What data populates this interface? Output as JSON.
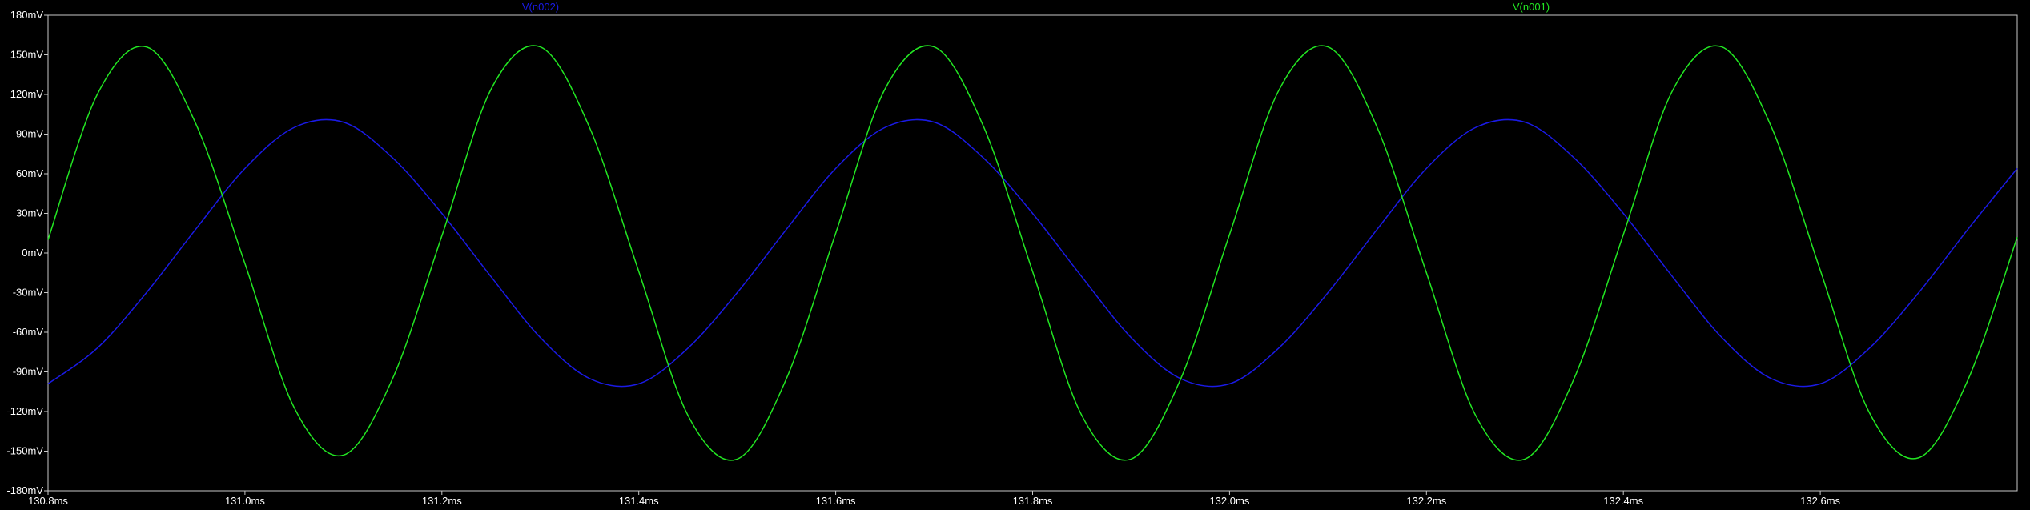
{
  "chart_data": {
    "type": "line",
    "title": "",
    "xlabel": "",
    "ylabel": "",
    "xlim": [
      130.8,
      132.8
    ],
    "ylim": [
      -180,
      180
    ],
    "x_unit": "ms",
    "y_unit": "mV",
    "x_ticks": [
      130.8,
      131.0,
      131.2,
      131.4,
      131.6,
      131.8,
      132.0,
      132.2,
      132.4,
      132.6
    ],
    "x_tick_labels": [
      "130.8ms",
      "131.0ms",
      "131.2ms",
      "131.4ms",
      "131.6ms",
      "131.8ms",
      "132.0ms",
      "132.2ms",
      "132.4ms",
      "132.6ms"
    ],
    "y_ticks": [
      180,
      150,
      120,
      90,
      60,
      30,
      0,
      -30,
      -60,
      -90,
      -120,
      -150,
      -180
    ],
    "y_tick_labels": [
      "180mV",
      "150mV",
      "120mV",
      "90mV",
      "60mV",
      "30mV",
      "0mV",
      "-30mV",
      "-60mV",
      "-90mV",
      "-120mV",
      "-150mV",
      "-180mV"
    ],
    "grid": false,
    "legend_position": "top",
    "series": [
      {
        "name": "V(n002)",
        "color": "#1a1ae6",
        "x": [
          130.8,
          130.85,
          130.9,
          130.95,
          131.0,
          131.05,
          131.1,
          131.15,
          131.2,
          131.25,
          131.3,
          131.35,
          131.4,
          131.45,
          131.5,
          131.55,
          131.6,
          131.65,
          131.7,
          131.75,
          131.8,
          131.85,
          131.9,
          131.95,
          132.0,
          132.05,
          132.1,
          132.15,
          132.2,
          132.25,
          132.3,
          132.35,
          132.4,
          132.45,
          132.5,
          132.55,
          132.6,
          132.65,
          132.7,
          132.75,
          132.8
        ],
        "values": [
          -99,
          -72,
          -30,
          18,
          64,
          95,
          99,
          72,
          30,
          -18,
          -64,
          -95,
          -99,
          -72,
          -30,
          18,
          64,
          95,
          99,
          72,
          30,
          -18,
          -64,
          -95,
          -99,
          -72,
          -30,
          18,
          64,
          95,
          99,
          72,
          30,
          -18,
          -64,
          -95,
          -99,
          -72,
          -30,
          18,
          64
        ]
      },
      {
        "name": "V(n001)",
        "color": "#22e622",
        "x": [
          130.8,
          130.85,
          130.9,
          130.95,
          131.0,
          131.05,
          131.1,
          131.15,
          131.2,
          131.25,
          131.3,
          131.35,
          131.4,
          131.45,
          131.5,
          131.55,
          131.6,
          131.65,
          131.7,
          131.75,
          131.8,
          131.85,
          131.9,
          131.95,
          132.0,
          132.05,
          132.1,
          132.15,
          132.2,
          132.25,
          132.3,
          132.35,
          132.4,
          132.45,
          132.5,
          132.55,
          132.6,
          132.65,
          132.7,
          132.75,
          132.8
        ],
        "values": [
          10,
          120,
          156,
          98,
          -8,
          -117,
          -153,
          -95,
          13,
          124,
          156,
          95,
          -14,
          -123,
          -156,
          -95,
          15,
          124,
          156,
          96,
          -14,
          -123,
          -156,
          -96,
          14,
          123,
          156,
          95,
          -15,
          -123,
          -156,
          -95,
          14,
          123,
          156,
          96,
          -13,
          -121,
          -155,
          -96,
          12
        ]
      }
    ]
  }
}
